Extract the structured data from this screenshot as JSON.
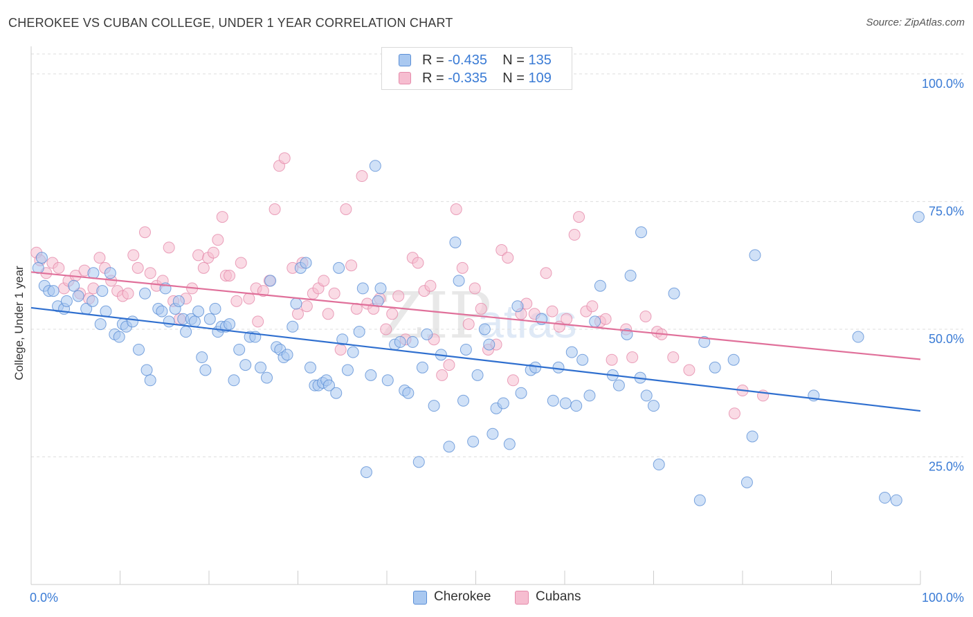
{
  "title": "CHEROKEE VS CUBAN COLLEGE, UNDER 1 YEAR CORRELATION CHART",
  "source": "Source: ZipAtlas.com",
  "legend": {
    "rows": [
      {
        "r_label": "R = ",
        "r_value": "-0.435",
        "n_label": "N = ",
        "n_value": "135"
      },
      {
        "r_label": "R = ",
        "r_value": "-0.335",
        "n_label": "N = ",
        "n_value": "109"
      }
    ]
  },
  "watermark": {
    "zip": "ZIP",
    "atlas": "atlas"
  },
  "colors": {
    "cherokee_fill": "#a9c8f0",
    "cherokee_stroke": "#5b8fd6",
    "cherokee_line": "#2f6fcf",
    "cubans_fill": "#f6bdd0",
    "cubans_stroke": "#e58aaa",
    "cubans_line": "#e0709a",
    "tick_label": "#3a7bd5",
    "grid": "#dddddd"
  },
  "chart_data": {
    "type": "scatter",
    "title": "CHEROKEE VS CUBAN COLLEGE, UNDER 1 YEAR CORRELATION CHART",
    "xlabel": "",
    "ylabel": "College, Under 1 year",
    "xlim": [
      0,
      100
    ],
    "ylim": [
      0,
      105
    ],
    "x_tick_labels": [
      "0.0%",
      "100.0%"
    ],
    "y_ticks": [
      25,
      50,
      75,
      100
    ],
    "y_tick_labels": [
      "25.0%",
      "50.0%",
      "75.0%",
      "100.0%"
    ],
    "grid": "horizontal dashed",
    "legend_position": "top-center and bottom",
    "series": [
      {
        "name": "Cherokee",
        "r": -0.435,
        "n": 135,
        "trend": {
          "x": [
            0,
            100
          ],
          "y": [
            54.2,
            34.0
          ]
        },
        "points": [
          [
            0.8,
            62
          ],
          [
            1.2,
            64
          ],
          [
            1.5,
            58.5
          ],
          [
            2,
            57.5
          ],
          [
            2.5,
            57.5
          ],
          [
            3,
            54.5
          ],
          [
            3.7,
            54
          ],
          [
            4,
            55.5
          ],
          [
            4.8,
            58.5
          ],
          [
            5.3,
            56.5
          ],
          [
            6.2,
            54
          ],
          [
            6.9,
            55.5
          ],
          [
            7,
            61
          ],
          [
            7.8,
            51
          ],
          [
            8,
            57.5
          ],
          [
            8.4,
            53.5
          ],
          [
            8.9,
            61
          ],
          [
            9.4,
            49
          ],
          [
            9.9,
            48.5
          ],
          [
            10.3,
            51
          ],
          [
            10.7,
            50.5
          ],
          [
            11.4,
            51.5
          ],
          [
            12.1,
            46
          ],
          [
            12.8,
            57
          ],
          [
            13,
            42
          ],
          [
            13.4,
            40
          ],
          [
            14.3,
            54
          ],
          [
            14.7,
            53.5
          ],
          [
            15.1,
            58
          ],
          [
            15.5,
            51.5
          ],
          [
            16.2,
            54
          ],
          [
            16.6,
            55.5
          ],
          [
            17.1,
            52
          ],
          [
            17.4,
            49.5
          ],
          [
            18,
            52
          ],
          [
            18.4,
            51.5
          ],
          [
            18.8,
            53.5
          ],
          [
            19.2,
            44.5
          ],
          [
            19.6,
            42
          ],
          [
            20.1,
            52
          ],
          [
            20.7,
            54
          ],
          [
            21,
            49.5
          ],
          [
            21.4,
            50.5
          ],
          [
            21.9,
            50.5
          ],
          [
            22.3,
            51
          ],
          [
            22.8,
            40
          ],
          [
            23.4,
            46
          ],
          [
            24.1,
            43
          ],
          [
            24.6,
            48.5
          ],
          [
            25.2,
            48.5
          ],
          [
            25.8,
            42.5
          ],
          [
            26.5,
            40.5
          ],
          [
            26.9,
            59.5
          ],
          [
            27.6,
            46.5
          ],
          [
            28,
            46
          ],
          [
            28.4,
            44.5
          ],
          [
            28.8,
            45
          ],
          [
            29.4,
            50.5
          ],
          [
            29.8,
            55
          ],
          [
            30.3,
            62
          ],
          [
            30.9,
            63
          ],
          [
            31.4,
            42.5
          ],
          [
            31.9,
            39
          ],
          [
            32.3,
            39
          ],
          [
            32.8,
            39.5
          ],
          [
            33.2,
            40
          ],
          [
            33.5,
            39
          ],
          [
            34.3,
            37.5
          ],
          [
            34.6,
            62
          ],
          [
            35,
            48
          ],
          [
            35.6,
            42
          ],
          [
            36.2,
            45.5
          ],
          [
            36.9,
            49.5
          ],
          [
            37.3,
            58
          ],
          [
            37.7,
            22
          ],
          [
            38.2,
            41
          ],
          [
            38.7,
            82
          ],
          [
            39,
            55.5
          ],
          [
            39.3,
            58
          ],
          [
            40.1,
            40
          ],
          [
            40.9,
            47
          ],
          [
            41.5,
            47.5
          ],
          [
            42,
            38
          ],
          [
            42.4,
            37.5
          ],
          [
            42.9,
            47.5
          ],
          [
            43.6,
            24
          ],
          [
            44,
            42.5
          ],
          [
            44.5,
            49
          ],
          [
            45.3,
            35
          ],
          [
            46.1,
            45
          ],
          [
            47,
            27
          ],
          [
            47.7,
            67
          ],
          [
            48.1,
            59.5
          ],
          [
            48.6,
            36
          ],
          [
            48.9,
            46
          ],
          [
            49.7,
            28
          ],
          [
            50.2,
            41
          ],
          [
            51,
            50
          ],
          [
            51.5,
            47
          ],
          [
            51.9,
            29.5
          ],
          [
            52.3,
            34.5
          ],
          [
            53.1,
            35.5
          ],
          [
            53.8,
            27.5
          ],
          [
            54.7,
            54.5
          ],
          [
            55.1,
            37.5
          ],
          [
            56.2,
            42
          ],
          [
            56.7,
            42.5
          ],
          [
            57.4,
            52
          ],
          [
            58.7,
            36
          ],
          [
            59.3,
            42.5
          ],
          [
            60.1,
            35.5
          ],
          [
            60.8,
            45.5
          ],
          [
            61.3,
            35
          ],
          [
            62,
            44
          ],
          [
            62.8,
            37
          ],
          [
            63.4,
            51.5
          ],
          [
            64,
            58.5
          ],
          [
            65.4,
            41
          ],
          [
            66.1,
            39
          ],
          [
            67,
            49
          ],
          [
            67.4,
            60.5
          ],
          [
            68.5,
            40.5
          ],
          [
            68.6,
            69
          ],
          [
            69.2,
            37
          ],
          [
            70,
            35
          ],
          [
            70.6,
            23.5
          ],
          [
            72.3,
            57
          ],
          [
            75.2,
            16.5
          ],
          [
            75.7,
            47.5
          ],
          [
            76.9,
            42.5
          ],
          [
            79,
            44
          ],
          [
            80.5,
            20
          ],
          [
            81.1,
            29
          ],
          [
            81.4,
            64.5
          ],
          [
            88,
            37
          ],
          [
            93,
            48.5
          ],
          [
            96,
            17
          ],
          [
            97.3,
            16.5
          ],
          [
            99.8,
            72
          ]
        ]
      },
      {
        "name": "Cubans",
        "r": -0.335,
        "n": 109,
        "trend": {
          "x": [
            0,
            100
          ],
          "y": [
            61.2,
            44.1
          ]
        },
        "points": [
          [
            0.6,
            65
          ],
          [
            1,
            63.5
          ],
          [
            1.7,
            61
          ],
          [
            2.4,
            63
          ],
          [
            3.1,
            62
          ],
          [
            3.7,
            58
          ],
          [
            4.2,
            59.5
          ],
          [
            5,
            60.5
          ],
          [
            5.5,
            57
          ],
          [
            6,
            61.5
          ],
          [
            6.5,
            56
          ],
          [
            7,
            58
          ],
          [
            7.7,
            64
          ],
          [
            8.3,
            62
          ],
          [
            9,
            59.5
          ],
          [
            9.7,
            57.5
          ],
          [
            10.3,
            56.5
          ],
          [
            10.9,
            57
          ],
          [
            11.5,
            64.5
          ],
          [
            12,
            62
          ],
          [
            12.8,
            69
          ],
          [
            13.4,
            61
          ],
          [
            14.1,
            58.5
          ],
          [
            14.8,
            59.5
          ],
          [
            15.5,
            66
          ],
          [
            16,
            55.5
          ],
          [
            16.7,
            52
          ],
          [
            17.4,
            56
          ],
          [
            18.1,
            58
          ],
          [
            18.8,
            64.5
          ],
          [
            19.4,
            62
          ],
          [
            19.9,
            64
          ],
          [
            20.5,
            65
          ],
          [
            21,
            67.5
          ],
          [
            21.5,
            72
          ],
          [
            21.9,
            60.5
          ],
          [
            22.3,
            60.5
          ],
          [
            23.1,
            55.5
          ],
          [
            23.6,
            63
          ],
          [
            24.5,
            56
          ],
          [
            25.3,
            58
          ],
          [
            25.5,
            51.5
          ],
          [
            26.1,
            57.5
          ],
          [
            26.8,
            59.5
          ],
          [
            27.4,
            73.5
          ],
          [
            27.9,
            82
          ],
          [
            28.5,
            83.5
          ],
          [
            29.4,
            62
          ],
          [
            30,
            53
          ],
          [
            30.5,
            63
          ],
          [
            31,
            54.5
          ],
          [
            31.7,
            57
          ],
          [
            32.3,
            58
          ],
          [
            32.9,
            59.5
          ],
          [
            33.4,
            53
          ],
          [
            34.1,
            57
          ],
          [
            34.8,
            46
          ],
          [
            35.4,
            73.5
          ],
          [
            36,
            62.5
          ],
          [
            36.6,
            54
          ],
          [
            37.2,
            80
          ],
          [
            37.8,
            55
          ],
          [
            38.5,
            54
          ],
          [
            39.2,
            56
          ],
          [
            39.9,
            50
          ],
          [
            40.6,
            53
          ],
          [
            41.3,
            56.5
          ],
          [
            42.1,
            48
          ],
          [
            42.9,
            64
          ],
          [
            43.5,
            63
          ],
          [
            44.2,
            57.5
          ],
          [
            44.9,
            58.5
          ],
          [
            45.3,
            48
          ],
          [
            46.2,
            41
          ],
          [
            47,
            43
          ],
          [
            47.8,
            73.5
          ],
          [
            48.5,
            62
          ],
          [
            49.2,
            51
          ],
          [
            49.9,
            58
          ],
          [
            50.6,
            54
          ],
          [
            51.4,
            46
          ],
          [
            52.3,
            47
          ],
          [
            52.9,
            65.5
          ],
          [
            53.6,
            64
          ],
          [
            54.2,
            40
          ],
          [
            55.1,
            53
          ],
          [
            55.7,
            55
          ],
          [
            56.6,
            53
          ],
          [
            57.9,
            61
          ],
          [
            58.6,
            53.5
          ],
          [
            59.4,
            50.5
          ],
          [
            60.2,
            52
          ],
          [
            61.1,
            68.5
          ],
          [
            61.6,
            72
          ],
          [
            62.4,
            53.5
          ],
          [
            63.1,
            54.5
          ],
          [
            64,
            51.5
          ],
          [
            64.6,
            52
          ],
          [
            65.3,
            44
          ],
          [
            66.9,
            50
          ],
          [
            67.6,
            44.5
          ],
          [
            69.1,
            52.5
          ],
          [
            70.4,
            49.5
          ],
          [
            70.9,
            49
          ],
          [
            72.2,
            44.5
          ],
          [
            74,
            42
          ],
          [
            79.1,
            33.5
          ],
          [
            80,
            38
          ],
          [
            82.3,
            37
          ]
        ]
      }
    ]
  },
  "bottom_legend": [
    {
      "label": "Cherokee"
    },
    {
      "label": "Cubans"
    }
  ]
}
